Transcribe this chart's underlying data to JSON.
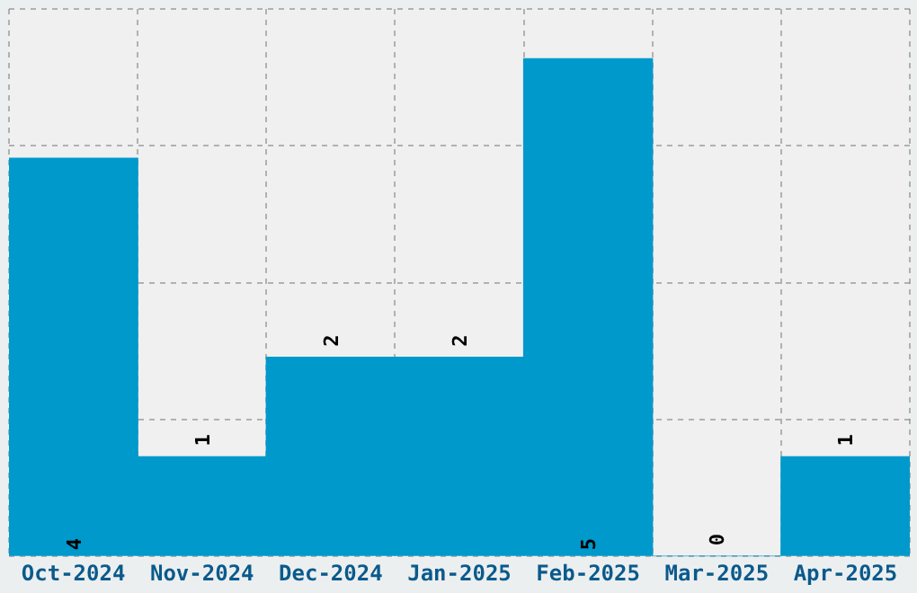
{
  "chart_data": {
    "type": "bar",
    "categories": [
      "Oct-2024",
      "Nov-2024",
      "Dec-2024",
      "Jan-2025",
      "Feb-2025",
      "Mar-2025",
      "Apr-2025"
    ],
    "values": [
      4,
      1,
      2,
      2,
      5,
      0,
      1
    ],
    "color": "#0099cc",
    "data_labels": true,
    "grid": true,
    "tick_labels": "x",
    "ylim": [
      0,
      5.5
    ],
    "yticks": [
      {
        "value": 0,
        "label": null
      },
      {
        "value": 1.375,
        "label": null
      },
      {
        "value": 2.75,
        "label": null
      },
      {
        "value": 4.125,
        "label": null
      },
      {
        "value": 5.5,
        "label": null
      }
    ]
  }
}
